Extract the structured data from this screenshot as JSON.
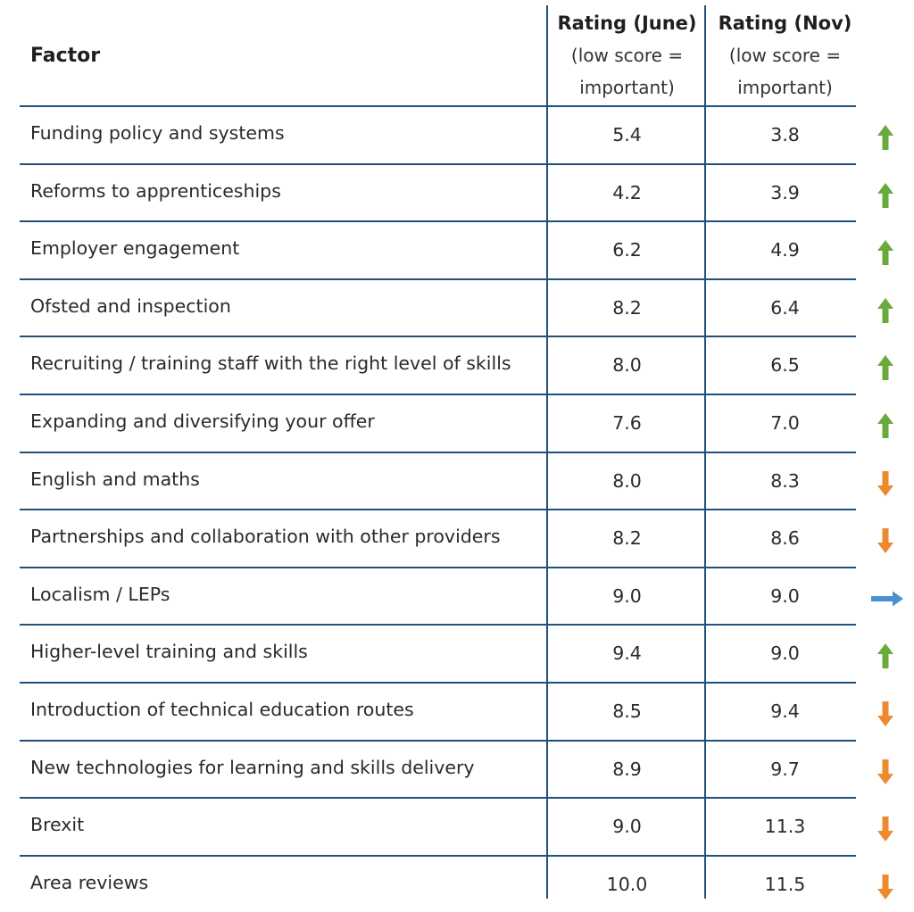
{
  "chart_data": {
    "type": "table",
    "columns": {
      "factor": "Factor",
      "june_title": "Rating (June)",
      "june_sub_1": "(low score =",
      "june_sub_2": "important)",
      "nov_title": "Rating (Nov)",
      "nov_sub_1": "(low score =",
      "nov_sub_2": "important)"
    },
    "rows": [
      {
        "factor": "Funding policy and systems",
        "june": "5.4",
        "nov": "3.8",
        "trend": "up"
      },
      {
        "factor": "Reforms to apprenticeships",
        "june": "4.2",
        "nov": "3.9",
        "trend": "up"
      },
      {
        "factor": "Employer engagement",
        "june": "6.2",
        "nov": "4.9",
        "trend": "up"
      },
      {
        "factor": "Ofsted and inspection",
        "june": "8.2",
        "nov": "6.4",
        "trend": "up"
      },
      {
        "factor": "Recruiting / training staff with the right level of skills",
        "june": "8.0",
        "nov": "6.5",
        "trend": "up"
      },
      {
        "factor": "Expanding and diversifying your offer",
        "june": "7.6",
        "nov": "7.0",
        "trend": "up"
      },
      {
        "factor": "English and maths",
        "june": "8.0",
        "nov": "8.3",
        "trend": "down"
      },
      {
        "factor": "Partnerships and collaboration with other providers",
        "june": "8.2",
        "nov": "8.6",
        "trend": "down"
      },
      {
        "factor": "Localism / LEPs",
        "june": "9.0",
        "nov": "9.0",
        "trend": "same"
      },
      {
        "factor": "Higher-level training and skills",
        "june": "9.4",
        "nov": "9.0",
        "trend": "up"
      },
      {
        "factor": "Introduction of technical education routes",
        "june": "8.5",
        "nov": "9.4",
        "trend": "down"
      },
      {
        "factor": "New technologies for learning and skills delivery",
        "june": "8.9",
        "nov": "9.7",
        "trend": "down"
      },
      {
        "factor": "Brexit",
        "june": "9.0",
        "nov": "11.3",
        "trend": "down"
      },
      {
        "factor": "Area reviews",
        "june": "10.0",
        "nov": "11.5",
        "trend": "down"
      }
    ],
    "colors": {
      "up": "#6aaa3a",
      "down": "#ee8a2e",
      "same": "#4a90d2",
      "rule": "#21507a"
    },
    "icons": {
      "up": "arrow-up-icon",
      "down": "arrow-down-icon",
      "same": "arrow-right-icon"
    }
  }
}
